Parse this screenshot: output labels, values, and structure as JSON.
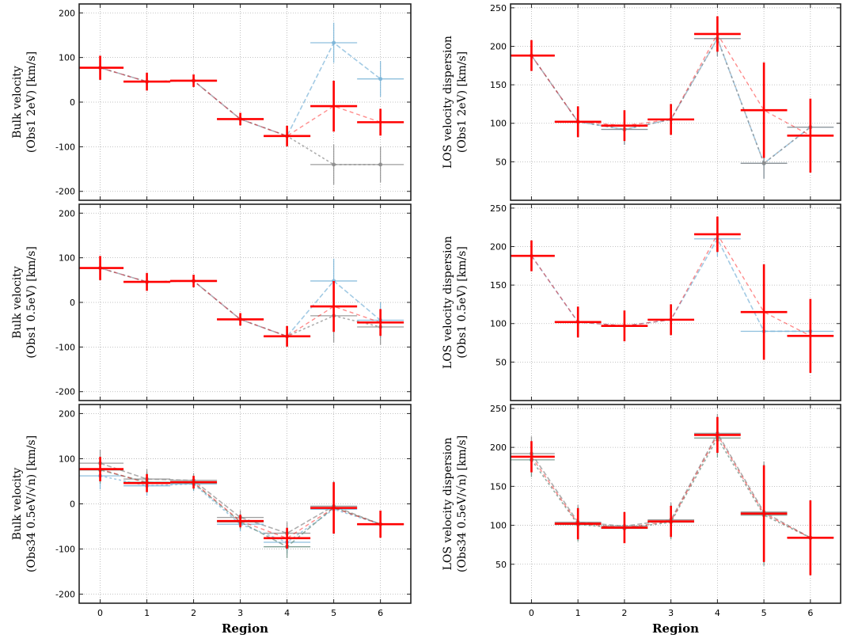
{
  "chart_data": [
    {
      "type": "scatter",
      "panel": "left-top",
      "ylabel_line1": "Bulk velocity",
      "ylabel_line2": "(Obs1 2eV) [km/s]",
      "xlabel": "",
      "ylim": [
        -220,
        220
      ],
      "yticks": [
        -200,
        -100,
        0,
        100,
        200
      ],
      "grid": true,
      "main": {
        "x": [
          0,
          1,
          2,
          3,
          4,
          5,
          6
        ],
        "y": [
          77,
          46,
          48,
          -38,
          -76,
          -9,
          -45
        ],
        "yerr": [
          27,
          20,
          14,
          14,
          23,
          57,
          30
        ],
        "xerr": 0.5,
        "color": "#ff0000"
      },
      "comparison": [
        {
          "x": [
            0,
            1,
            2,
            3,
            4,
            5,
            6
          ],
          "y": [
            77,
            46,
            48,
            -38,
            -76,
            133,
            52
          ],
          "yerr": [
            27,
            20,
            14,
            14,
            23,
            45,
            40
          ],
          "xerr": 0.5,
          "color": "#7ab4d8"
        },
        {
          "x": [
            0,
            1,
            2,
            3,
            4,
            5,
            6
          ],
          "y": [
            77,
            46,
            48,
            -38,
            -76,
            -140,
            -140
          ],
          "yerr": [
            27,
            20,
            14,
            14,
            23,
            45,
            40
          ],
          "xerr": 0.5,
          "color": "#8c8c8c"
        }
      ]
    },
    {
      "type": "scatter",
      "panel": "left-middle",
      "ylabel_line1": "Bulk velocity",
      "ylabel_line2": "(Obs1 0.5eV) [km/s]",
      "xlabel": "",
      "ylim": [
        -220,
        220
      ],
      "yticks": [
        -200,
        -100,
        0,
        100,
        200
      ],
      "grid": true,
      "main": {
        "x": [
          0,
          1,
          2,
          3,
          4,
          5,
          6
        ],
        "y": [
          77,
          46,
          48,
          -38,
          -76,
          -9,
          -45
        ],
        "yerr": [
          27,
          20,
          14,
          14,
          23,
          57,
          30
        ],
        "xerr": 0.5,
        "color": "#ff0000"
      },
      "comparison": [
        {
          "x": [
            0,
            1,
            2,
            3,
            4,
            5,
            6
          ],
          "y": [
            77,
            46,
            48,
            -38,
            -76,
            48,
            -40
          ],
          "yerr": [
            27,
            20,
            14,
            14,
            23,
            50,
            40
          ],
          "xerr": 0.5,
          "color": "#7ab4d8"
        },
        {
          "x": [
            0,
            1,
            2,
            3,
            4,
            5,
            6
          ],
          "y": [
            77,
            46,
            48,
            -38,
            -76,
            -30,
            -55
          ],
          "yerr": [
            27,
            20,
            14,
            14,
            23,
            60,
            40
          ],
          "xerr": 0.5,
          "color": "#8c8c8c"
        }
      ]
    },
    {
      "type": "scatter",
      "panel": "left-bottom",
      "ylabel_line1": "Bulk velocity",
      "ylabel_line2": "(Obs34 0.5eV/√n) [km/s]",
      "xlabel": "Region",
      "ylim": [
        -220,
        220
      ],
      "yticks": [
        -200,
        -100,
        0,
        100,
        200
      ],
      "xticks": [
        0,
        1,
        2,
        3,
        4,
        5,
        6
      ],
      "grid": true,
      "main": {
        "x": [
          0,
          1,
          2,
          3,
          4,
          5,
          6
        ],
        "y": [
          77,
          46,
          48,
          -38,
          -76,
          -9,
          -45
        ],
        "yerr": [
          27,
          20,
          14,
          14,
          23,
          57,
          30
        ],
        "xerr": 0.5,
        "color": "#ff0000"
      },
      "comparison": [
        {
          "x": [
            0,
            1,
            2,
            3,
            4,
            5,
            6
          ],
          "y": [
            90,
            55,
            52,
            -30,
            -65,
            -5,
            -45
          ],
          "yerr": [
            30,
            22,
            16,
            16,
            25,
            55,
            30
          ],
          "xerr": 0.5,
          "color": "#8c8c8c"
        },
        {
          "x": [
            0,
            1,
            2,
            3,
            4,
            5,
            6
          ],
          "y": [
            62,
            40,
            44,
            -45,
            -85,
            -12,
            -45
          ],
          "yerr": [
            30,
            22,
            16,
            16,
            25,
            55,
            30
          ],
          "xerr": 0.5,
          "color": "#7ab4d8"
        },
        {
          "x": [
            0,
            1,
            2,
            3,
            4,
            5,
            6
          ],
          "y": [
            75,
            48,
            46,
            -40,
            -95,
            -8,
            -45
          ],
          "yerr": [
            30,
            22,
            16,
            16,
            25,
            55,
            30
          ],
          "xerr": 0.5,
          "color": "#6a8f82"
        }
      ]
    },
    {
      "type": "scatter",
      "panel": "right-top",
      "ylabel_line1": "LOS velocity dispersion",
      "ylabel_line2": "(Obs1 2eV) [km/s]",
      "xlabel": "",
      "ylim": [
        0,
        255
      ],
      "yticks": [
        50,
        100,
        150,
        200,
        250
      ],
      "grid": true,
      "main": {
        "x": [
          0,
          1,
          2,
          3,
          4,
          5,
          6
        ],
        "y": [
          188,
          102,
          97,
          105,
          216,
          117,
          84
        ],
        "yerr": [
          20,
          20,
          20,
          20,
          23,
          62,
          48
        ],
        "xerr": 0.5,
        "color": "#ff0000"
      },
      "comparison": [
        {
          "x": [
            0,
            1,
            2,
            3,
            4,
            5,
            6
          ],
          "y": [
            188,
            102,
            92,
            105,
            210,
            48,
            95
          ],
          "yerr": [
            20,
            20,
            20,
            20,
            23,
            20,
            30
          ],
          "xerr": 0.5,
          "color": "#7ab4d8"
        },
        {
          "x": [
            0,
            1,
            2,
            3,
            4,
            5,
            6
          ],
          "y": [
            188,
            102,
            92,
            105,
            210,
            48,
            95
          ],
          "yerr": [
            20,
            20,
            20,
            20,
            23,
            20,
            30
          ],
          "xerr": 0.5,
          "color": "#8c8c8c"
        }
      ]
    },
    {
      "type": "scatter",
      "panel": "right-middle",
      "ylabel_line1": "LOS velocity dispersion",
      "ylabel_line2": "(Obs1 0.5eV) [km/s]",
      "xlabel": "",
      "ylim": [
        0,
        255
      ],
      "yticks": [
        50,
        100,
        150,
        200,
        250
      ],
      "grid": true,
      "main": {
        "x": [
          0,
          1,
          2,
          3,
          4,
          5,
          6
        ],
        "y": [
          188,
          102,
          97,
          105,
          216,
          115,
          84
        ],
        "yerr": [
          20,
          20,
          20,
          20,
          23,
          62,
          48
        ],
        "xerr": 0.5,
        "color": "#ff0000"
      },
      "comparison": [
        {
          "x": [
            0,
            1,
            2,
            3,
            4,
            5,
            6
          ],
          "y": [
            188,
            102,
            97,
            105,
            210,
            90,
            90
          ],
          "yerr": [
            20,
            20,
            20,
            20,
            23,
            30,
            30
          ],
          "xerr": 0.5,
          "color": "#7ab4d8"
        }
      ]
    },
    {
      "type": "scatter",
      "panel": "right-bottom",
      "ylabel_line1": "LOS velocity dispersion",
      "ylabel_line2": "(Obs34 0.5eV/√n) [km/s]",
      "xlabel": "Region",
      "ylim": [
        0,
        255
      ],
      "yticks": [
        50,
        100,
        150,
        200,
        250
      ],
      "xticks": [
        0,
        1,
        2,
        3,
        4,
        5,
        6
      ],
      "grid": true,
      "main": {
        "x": [
          0,
          1,
          2,
          3,
          4,
          5,
          6
        ],
        "y": [
          188,
          102,
          97,
          105,
          216,
          115,
          84
        ],
        "yerr": [
          20,
          20,
          20,
          20,
          23,
          62,
          48
        ],
        "xerr": 0.5,
        "color": "#ff0000"
      },
      "comparison": [
        {
          "x": [
            0,
            1,
            2,
            3,
            4,
            5,
            6
          ],
          "y": [
            192,
            104,
            99,
            107,
            218,
            117,
            84
          ],
          "yerr": [
            22,
            22,
            18,
            22,
            25,
            65,
            48
          ],
          "xerr": 0.5,
          "color": "#8c8c8c"
        },
        {
          "x": [
            0,
            1,
            2,
            3,
            4,
            5,
            6
          ],
          "y": [
            184,
            101,
            96,
            104,
            212,
            113,
            84
          ],
          "yerr": [
            22,
            22,
            18,
            22,
            25,
            65,
            48
          ],
          "xerr": 0.5,
          "color": "#6a8f82"
        }
      ]
    }
  ]
}
